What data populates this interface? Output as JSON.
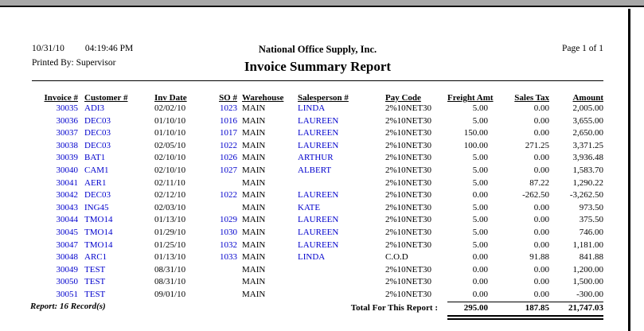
{
  "report_header": {
    "date": "10/31/10",
    "time": "04:19:46 PM",
    "company": "National Office Supply, Inc.",
    "page_label": "Page 1 of 1",
    "printed_by": "Printed By: Supervisor",
    "title": "Invoice Summary Report"
  },
  "table": {
    "columns": [
      "Invoice #",
      "Customer #",
      "Inv Date",
      "SO #",
      "Warehouse",
      "Salesperson #",
      "Pay Code",
      "Freight Amt",
      "Sales Tax",
      "Amount"
    ],
    "rows": [
      [
        "30035",
        "ADI3",
        "02/02/10",
        "1023",
        "MAIN",
        "LINDA",
        "2%10NET30",
        "5.00",
        "0.00",
        "2,005.00"
      ],
      [
        "30036",
        "DEC03",
        "01/10/10",
        "1016",
        "MAIN",
        "LAUREEN",
        "2%10NET30",
        "5.00",
        "0.00",
        "3,655.00"
      ],
      [
        "30037",
        "DEC03",
        "01/10/10",
        "1017",
        "MAIN",
        "LAUREEN",
        "2%10NET30",
        "150.00",
        "0.00",
        "2,650.00"
      ],
      [
        "30038",
        "DEC03",
        "02/05/10",
        "1022",
        "MAIN",
        "LAUREEN",
        "2%10NET30",
        "100.00",
        "271.25",
        "3,371.25"
      ],
      [
        "30039",
        "BAT1",
        "02/10/10",
        "1026",
        "MAIN",
        "ARTHUR",
        "2%10NET30",
        "5.00",
        "0.00",
        "3,936.48"
      ],
      [
        "30040",
        "CAM1",
        "02/10/10",
        "1027",
        "MAIN",
        "ALBERT",
        "2%10NET30",
        "5.00",
        "0.00",
        "1,583.70"
      ],
      [
        "30041",
        "AER1",
        "02/11/10",
        "",
        "MAIN",
        "",
        "2%10NET30",
        "5.00",
        "87.22",
        "1,290.22"
      ],
      [
        "30042",
        "DEC03",
        "02/12/10",
        "1022",
        "MAIN",
        "LAUREEN",
        "2%10NET30",
        "0.00",
        "-262.50",
        "-3,262.50"
      ],
      [
        "30043",
        "ING45",
        "02/03/10",
        "",
        "MAIN",
        "KATE",
        "2%10NET30",
        "5.00",
        "0.00",
        "973.50"
      ],
      [
        "30044",
        "TMO14",
        "01/13/10",
        "1029",
        "MAIN",
        "LAUREEN",
        "2%10NET30",
        "5.00",
        "0.00",
        "375.50"
      ],
      [
        "30045",
        "TMO14",
        "01/29/10",
        "1030",
        "MAIN",
        "LAUREEN",
        "2%10NET30",
        "5.00",
        "0.00",
        "746.00"
      ],
      [
        "30047",
        "TMO14",
        "01/25/10",
        "1032",
        "MAIN",
        "LAUREEN",
        "2%10NET30",
        "5.00",
        "0.00",
        "1,181.00"
      ],
      [
        "30048",
        "ARC1",
        "01/13/10",
        "1033",
        "MAIN",
        "LINDA",
        "C.O.D",
        "0.00",
        "91.88",
        "841.88"
      ],
      [
        "30049",
        "TEST",
        "08/31/10",
        "",
        "MAIN",
        "",
        "2%10NET30",
        "0.00",
        "0.00",
        "1,200.00"
      ],
      [
        "30050",
        "TEST",
        "08/31/10",
        "",
        "MAIN",
        "",
        "2%10NET30",
        "0.00",
        "0.00",
        "1,500.00"
      ],
      [
        "30051",
        "TEST",
        "09/01/10",
        "",
        "MAIN",
        "",
        "2%10NET30",
        "0.00",
        "0.00",
        "-300.00"
      ]
    ],
    "totals": {
      "record_count": "Report: 16 Record(s)",
      "label": "Total For This Report :",
      "freight": "295.00",
      "sales_tax": "187.85",
      "amount": "21,747.03"
    }
  },
  "colors": {
    "link_blue": "#0000CC",
    "top_bar_gray": "#A8A8A8",
    "page_border": "#000000"
  }
}
